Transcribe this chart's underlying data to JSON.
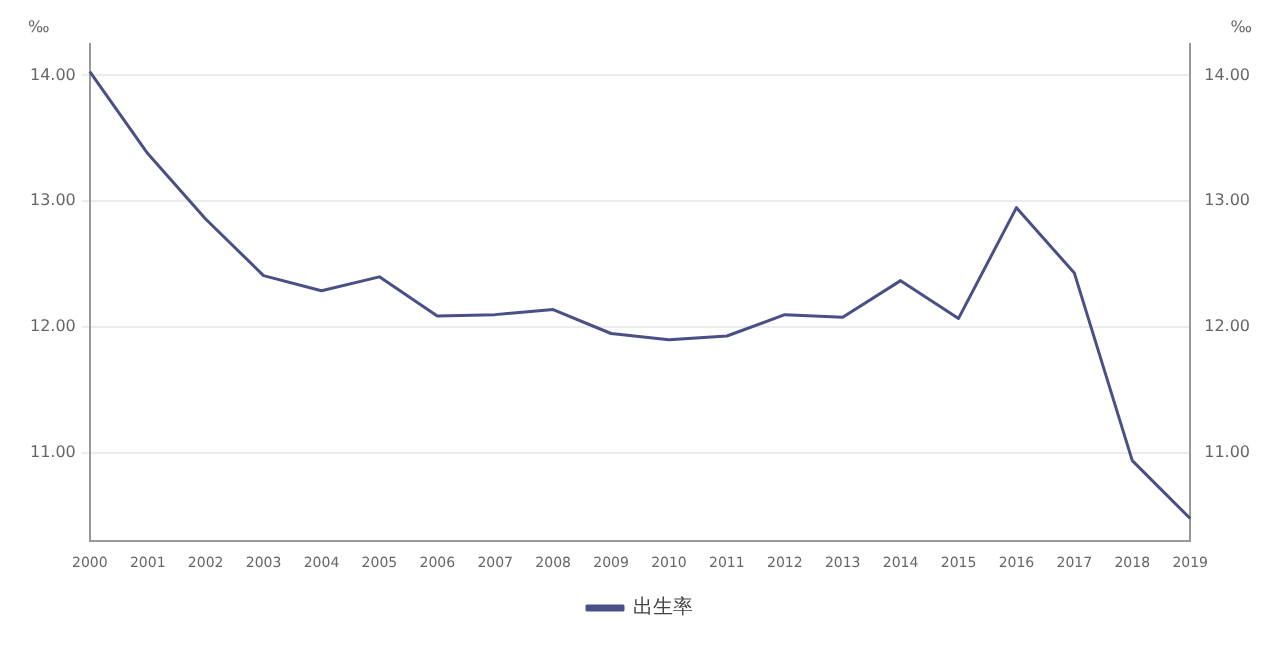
{
  "chart_data": {
    "type": "line",
    "categories": [
      "2000",
      "2001",
      "2002",
      "2003",
      "2004",
      "2005",
      "2006",
      "2007",
      "2008",
      "2009",
      "2010",
      "2011",
      "2012",
      "2013",
      "2014",
      "2015",
      "2016",
      "2017",
      "2018",
      "2019"
    ],
    "series": [
      {
        "name": "出生率",
        "color": "#4a4f85",
        "values": [
          14.03,
          13.38,
          12.86,
          12.41,
          12.29,
          12.4,
          12.09,
          12.1,
          12.14,
          11.95,
          11.9,
          11.93,
          12.1,
          12.08,
          12.37,
          12.07,
          12.95,
          12.43,
          10.94,
          10.48
        ]
      }
    ],
    "ylabel": "‰",
    "y2label": "‰",
    "ylim": [
      10.3,
      14.25
    ],
    "yticks": [
      {
        "value": 11,
        "label": "11.00"
      },
      {
        "value": 12,
        "label": "12.00"
      },
      {
        "value": 13,
        "label": "13.00"
      },
      {
        "value": 14,
        "label": "14.00"
      }
    ],
    "y2lim": [
      10.3,
      14.25
    ],
    "y2ticks": [
      {
        "value": 11,
        "label": "11.00"
      },
      {
        "value": 12,
        "label": "12.00"
      },
      {
        "value": 13,
        "label": "13.00"
      },
      {
        "value": 14,
        "label": "14.00"
      }
    ],
    "grid": "y",
    "legend": "bottom",
    "marker": "none",
    "line_style": "solid"
  }
}
